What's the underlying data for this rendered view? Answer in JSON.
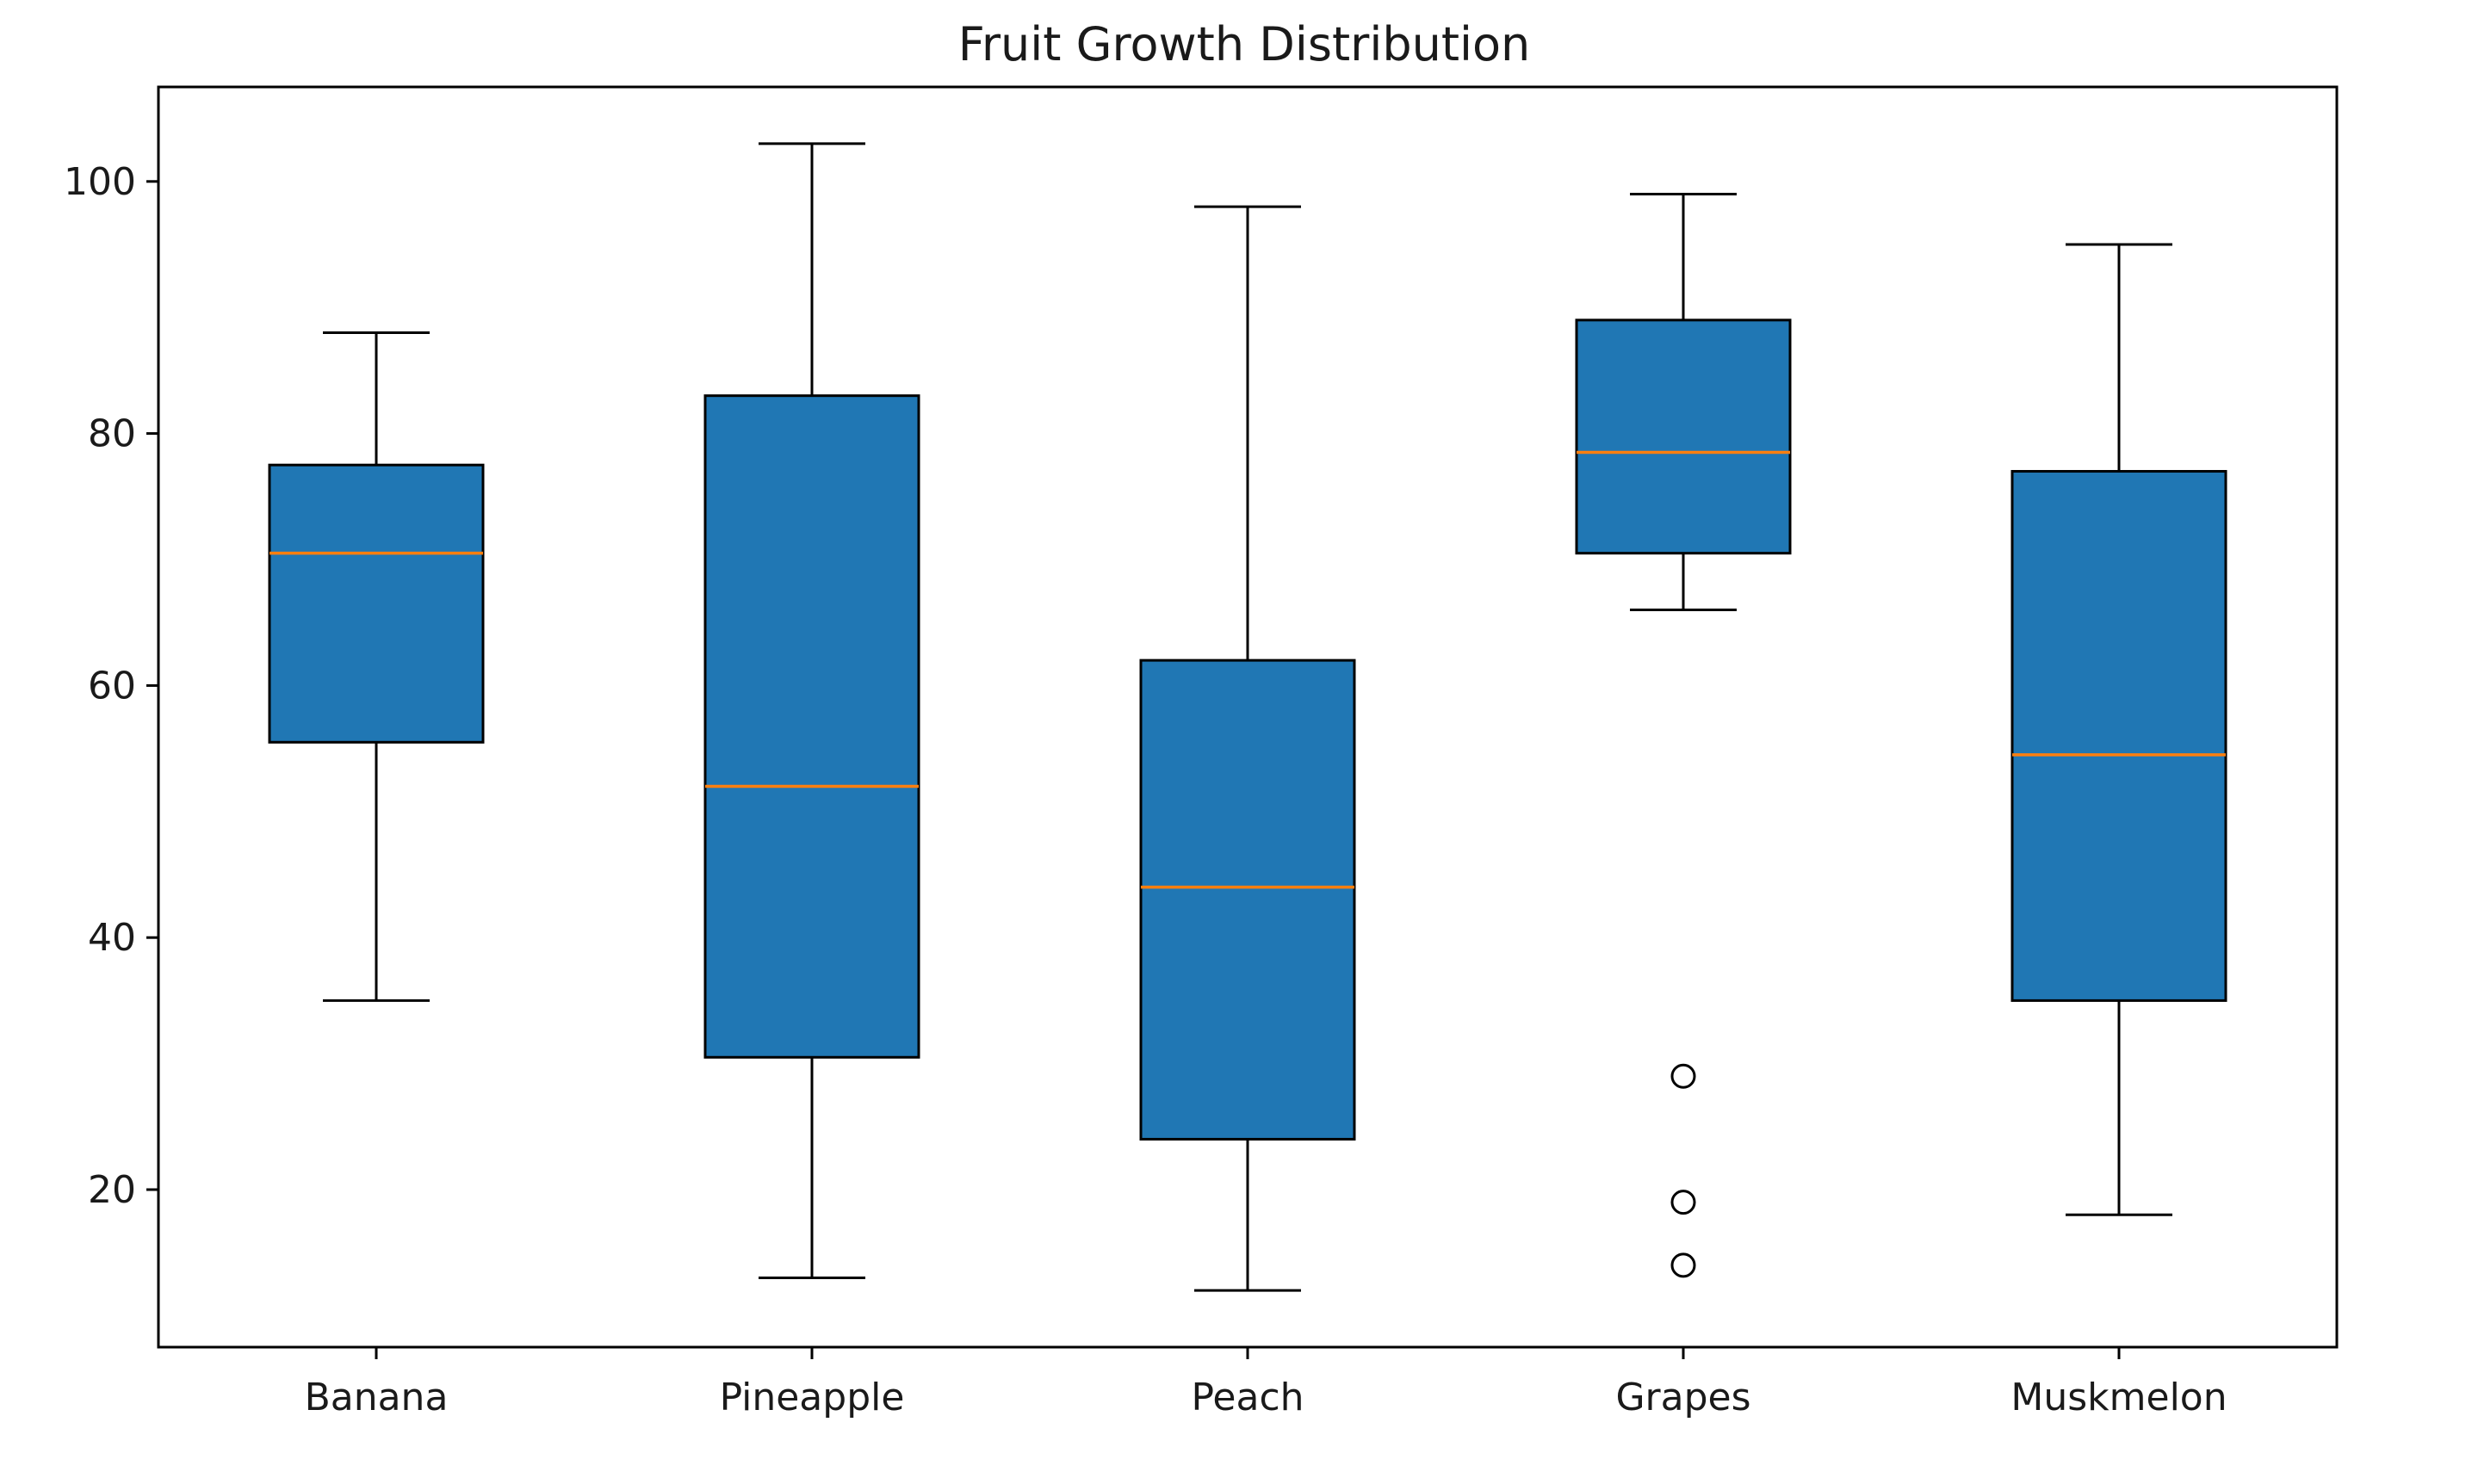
{
  "chart_data": {
    "type": "boxplot",
    "title": "Fruit Growth Distribution",
    "xlabel": "",
    "ylabel": "",
    "ylim": [
      7.5,
      107.5
    ],
    "yticks": [
      20,
      40,
      60,
      80,
      100
    ],
    "grid": false,
    "legend": "none",
    "box_color": "#2077b4",
    "median_color": "#ff7f0e",
    "categories": [
      "Banana",
      "Pineapple",
      "Peach",
      "Grapes",
      "Muskmelon"
    ],
    "boxes": [
      {
        "label": "Banana",
        "whisker_low": 35,
        "q1": 55.5,
        "median": 70.5,
        "q3": 77.5,
        "whisker_high": 88,
        "outliers": []
      },
      {
        "label": "Pineapple",
        "whisker_low": 13,
        "q1": 30.5,
        "median": 52,
        "q3": 83,
        "whisker_high": 103,
        "outliers": []
      },
      {
        "label": "Peach",
        "whisker_low": 12,
        "q1": 24,
        "median": 44,
        "q3": 62,
        "whisker_high": 98,
        "outliers": []
      },
      {
        "label": "Grapes",
        "whisker_low": 66,
        "q1": 70.5,
        "median": 78.5,
        "q3": 89,
        "whisker_high": 99,
        "outliers": [
          29,
          19,
          14
        ]
      },
      {
        "label": "Muskmelon",
        "whisker_low": 18,
        "q1": 35,
        "median": 54.5,
        "q3": 77,
        "whisker_high": 95,
        "outliers": []
      }
    ]
  }
}
